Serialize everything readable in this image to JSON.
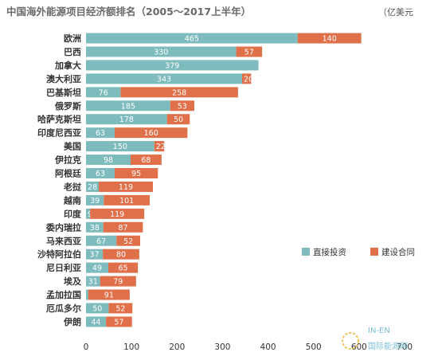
{
  "chart_data": {
    "type": "bar",
    "orientation": "horizontal",
    "stacked": true,
    "title": "中国海外能源项目经济额排名（2005～2017上半年）",
    "unit": "（亿美元",
    "categories": [
      "欧洲",
      "巴西",
      "加拿大",
      "澳大利亚",
      "巴基斯坦",
      "俄罗斯",
      "哈萨克斯坦",
      "印度尼西亚",
      "美国",
      "伊拉克",
      "阿根廷",
      "老挝",
      "越南",
      "印度",
      "委内瑞拉",
      "马来西亚",
      "沙特阿拉伯",
      "尼日利亚",
      "埃及",
      "孟加拉国",
      "厄瓜多尔",
      "伊朗"
    ],
    "series": [
      {
        "name": "直接投资",
        "color": "#7dbbbd",
        "values": [
          465,
          330,
          379,
          343,
          76,
          185,
          178,
          63,
          150,
          98,
          63,
          28,
          39,
          9,
          38,
          67,
          37,
          49,
          31,
          5,
          50,
          44
        ]
      },
      {
        "name": "建设合同",
        "color": "#e0704a",
        "values": [
          140,
          57,
          0,
          20,
          258,
          53,
          50,
          160,
          22,
          68,
          95,
          119,
          101,
          119,
          87,
          52,
          80,
          65,
          79,
          91,
          52,
          57
        ]
      }
    ],
    "xlim": [
      0,
      700
    ],
    "xticks": [
      0,
      100,
      200,
      300,
      400,
      500,
      600,
      700
    ],
    "legend_position": "right",
    "grid": false
  },
  "watermark": {
    "top": "IN-EN",
    "bottom": "国际能源网"
  }
}
